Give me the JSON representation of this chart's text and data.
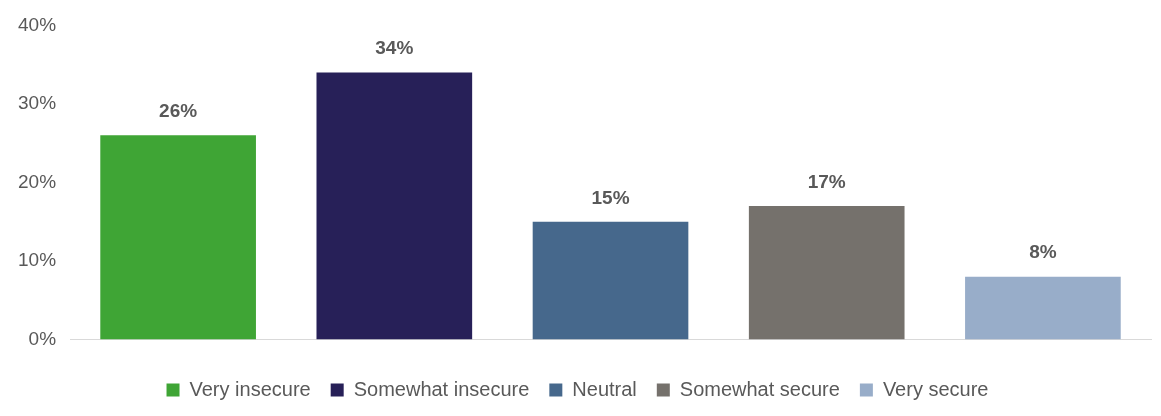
{
  "chart_data": {
    "type": "bar",
    "categories": [
      null,
      null,
      null,
      null,
      null
    ],
    "series": [
      {
        "name": "Very insecure",
        "color": "#3fa535",
        "values": [
          26,
          null,
          null,
          null,
          null
        ],
        "value_labels": [
          "26%",
          null,
          null,
          null,
          null
        ]
      },
      {
        "name": "Somewhat insecure",
        "color": "#272058",
        "values": [
          null,
          34,
          null,
          null,
          null
        ],
        "value_labels": [
          null,
          "34%",
          null,
          null,
          null
        ]
      },
      {
        "name": "Neutral",
        "color": "#46688c",
        "values": [
          null,
          null,
          15,
          null,
          null
        ],
        "value_labels": [
          null,
          null,
          "15%",
          null,
          null
        ]
      },
      {
        "name": "Somewhat secure",
        "color": "#75716c",
        "values": [
          null,
          null,
          null,
          17,
          null
        ],
        "value_labels": [
          null,
          null,
          null,
          "17%",
          null
        ]
      },
      {
        "name": "Very secure",
        "color": "#98adc9",
        "values": [
          null,
          null,
          null,
          null,
          8
        ],
        "value_labels": [
          null,
          null,
          null,
          null,
          "8%"
        ]
      }
    ],
    "ylim": [
      0,
      40
    ],
    "yticks": [
      {
        "value": 0,
        "label": "0%"
      },
      {
        "value": 10,
        "label": "10%"
      },
      {
        "value": 20,
        "label": "20%"
      },
      {
        "value": 30,
        "label": "30%"
      },
      {
        "value": 40,
        "label": "40%"
      }
    ],
    "grid": false,
    "legend": "bottom"
  }
}
